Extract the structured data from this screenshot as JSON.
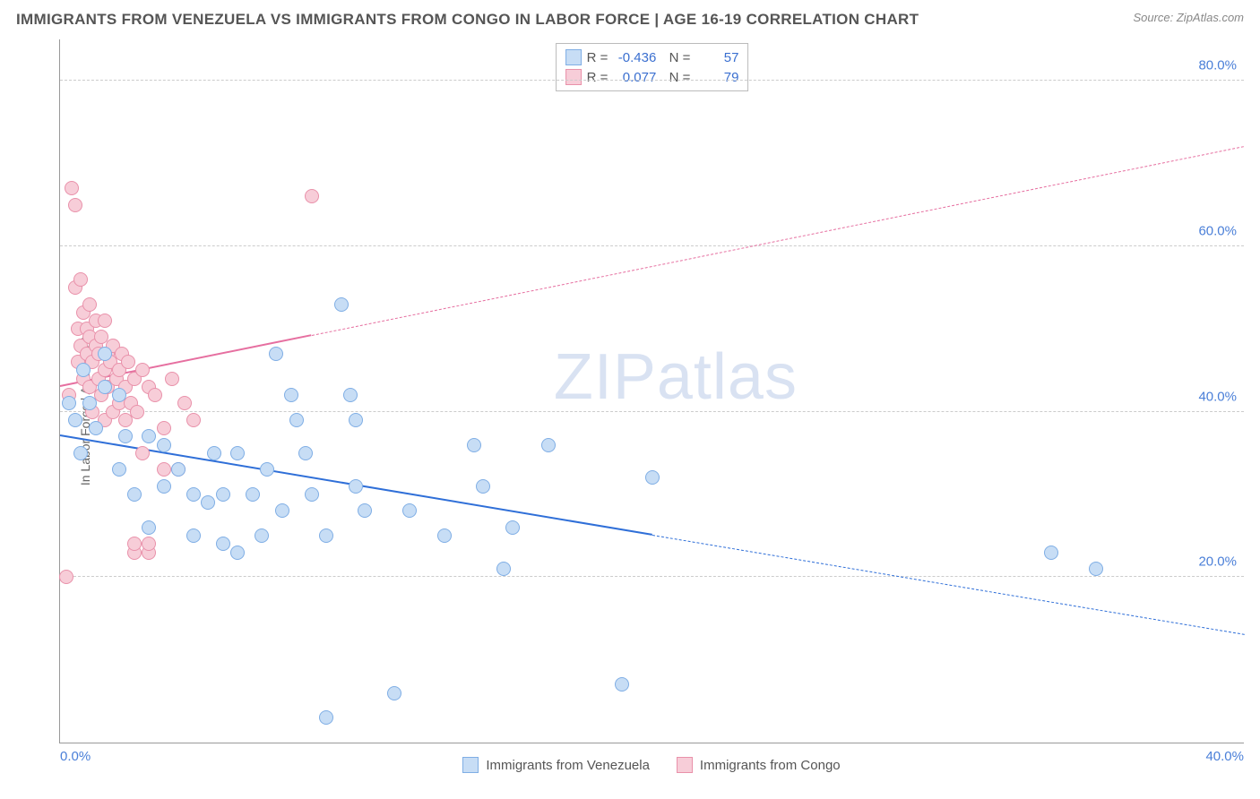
{
  "title": "IMMIGRANTS FROM VENEZUELA VS IMMIGRANTS FROM CONGO IN LABOR FORCE | AGE 16-19 CORRELATION CHART",
  "source": "Source: ZipAtlas.com",
  "ylabel": "In Labor Force | Age 16-19",
  "watermark_a": "ZIP",
  "watermark_b": "atlas",
  "chart": {
    "type": "scatter",
    "xlim": [
      0,
      40
    ],
    "ylim": [
      0,
      85
    ],
    "yticks": [
      20,
      40,
      60,
      80
    ],
    "ytick_labels": [
      "20.0%",
      "40.0%",
      "60.0%",
      "80.0%"
    ],
    "xticks": [
      0,
      40
    ],
    "xtick_labels": [
      "0.0%",
      "40.0%"
    ],
    "grid_color": "#cccccc",
    "background_color": "#ffffff",
    "series": [
      {
        "name": "Immigrants from Venezuela",
        "color_fill": "#c7ddf5",
        "color_stroke": "#7faee5",
        "marker_size": 16,
        "R": "-0.436",
        "N": "57",
        "trend": {
          "x1": 0,
          "y1": 37,
          "x2": 40,
          "y2": 13,
          "solid_until_x": 20,
          "color": "#2f6fd8"
        },
        "points": [
          [
            0.3,
            41
          ],
          [
            0.5,
            39
          ],
          [
            0.7,
            35
          ],
          [
            0.8,
            45
          ],
          [
            1,
            41
          ],
          [
            1.2,
            38
          ],
          [
            1.5,
            43
          ],
          [
            1.5,
            47
          ],
          [
            2,
            33
          ],
          [
            2,
            42
          ],
          [
            2.2,
            37
          ],
          [
            2.5,
            30
          ],
          [
            3,
            37
          ],
          [
            3,
            26
          ],
          [
            3.5,
            36
          ],
          [
            3.5,
            31
          ],
          [
            4,
            33
          ],
          [
            4.5,
            30
          ],
          [
            4.5,
            25
          ],
          [
            5,
            29
          ],
          [
            5.2,
            35
          ],
          [
            5.5,
            30
          ],
          [
            5.5,
            24
          ],
          [
            6,
            35
          ],
          [
            6,
            23
          ],
          [
            6.5,
            30
          ],
          [
            6.8,
            25
          ],
          [
            7,
            33
          ],
          [
            7.3,
            47
          ],
          [
            7.5,
            28
          ],
          [
            7.8,
            42
          ],
          [
            8,
            39
          ],
          [
            8.3,
            35
          ],
          [
            8.5,
            30
          ],
          [
            9,
            25
          ],
          [
            9,
            3
          ],
          [
            9.5,
            53
          ],
          [
            9.8,
            42
          ],
          [
            10,
            39
          ],
          [
            10,
            31
          ],
          [
            10.3,
            28
          ],
          [
            11.3,
            6
          ],
          [
            11.8,
            28
          ],
          [
            13,
            25
          ],
          [
            14,
            36
          ],
          [
            14.3,
            31
          ],
          [
            15,
            21
          ],
          [
            15.3,
            26
          ],
          [
            16.5,
            36
          ],
          [
            19,
            7
          ],
          [
            20,
            32
          ],
          [
            33.5,
            23
          ],
          [
            35,
            21
          ]
        ]
      },
      {
        "name": "Immigrants from Congo",
        "color_fill": "#f7cdd8",
        "color_stroke": "#e991aa",
        "marker_size": 16,
        "R": "0.077",
        "N": "79",
        "trend": {
          "x1": 0,
          "y1": 43,
          "x2": 40,
          "y2": 72,
          "solid_until_x": 8.5,
          "color": "#e66fa0"
        },
        "points": [
          [
            0.2,
            20
          ],
          [
            0.3,
            42
          ],
          [
            0.4,
            67
          ],
          [
            0.5,
            65
          ],
          [
            0.5,
            55
          ],
          [
            0.6,
            50
          ],
          [
            0.6,
            46
          ],
          [
            0.7,
            48
          ],
          [
            0.7,
            56
          ],
          [
            0.8,
            44
          ],
          [
            0.8,
            52
          ],
          [
            0.9,
            47
          ],
          [
            0.9,
            50
          ],
          [
            1,
            43
          ],
          [
            1,
            49
          ],
          [
            1,
            53
          ],
          [
            1.1,
            46
          ],
          [
            1.1,
            40
          ],
          [
            1.2,
            48
          ],
          [
            1.2,
            51
          ],
          [
            1.3,
            44
          ],
          [
            1.3,
            47
          ],
          [
            1.4,
            42
          ],
          [
            1.4,
            49
          ],
          [
            1.5,
            45
          ],
          [
            1.5,
            39
          ],
          [
            1.5,
            51
          ],
          [
            1.6,
            47
          ],
          [
            1.6,
            43
          ],
          [
            1.7,
            46
          ],
          [
            1.8,
            40
          ],
          [
            1.8,
            48
          ],
          [
            1.9,
            44
          ],
          [
            2,
            45
          ],
          [
            2,
            41
          ],
          [
            2.1,
            47
          ],
          [
            2.2,
            39
          ],
          [
            2.2,
            43
          ],
          [
            2.3,
            46
          ],
          [
            2.4,
            41
          ],
          [
            2.5,
            44
          ],
          [
            2.5,
            23
          ],
          [
            2.5,
            24
          ],
          [
            2.6,
            40
          ],
          [
            2.8,
            45
          ],
          [
            2.8,
            35
          ],
          [
            3,
            43
          ],
          [
            3,
            23
          ],
          [
            3,
            24
          ],
          [
            3.2,
            42
          ],
          [
            3.5,
            38
          ],
          [
            3.5,
            33
          ],
          [
            3.8,
            44
          ],
          [
            4,
            33
          ],
          [
            4.2,
            41
          ],
          [
            4.5,
            39
          ],
          [
            8.5,
            66
          ]
        ]
      }
    ]
  },
  "legend_bottom": [
    {
      "label": "Immigrants from Venezuela",
      "fill": "#c7ddf5",
      "stroke": "#7faee5"
    },
    {
      "label": "Immigrants from Congo",
      "fill": "#f7cdd8",
      "stroke": "#e991aa"
    }
  ]
}
